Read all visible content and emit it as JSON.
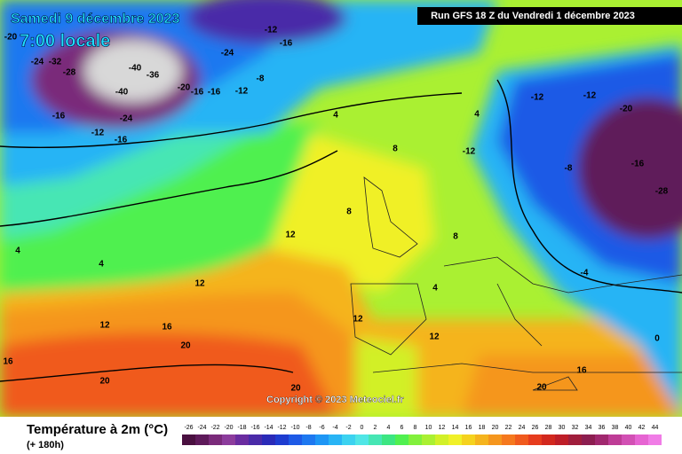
{
  "header": {
    "date": "Samedi 9 décembre 2023",
    "time": "7:00 locale",
    "run": "Run GFS 18 Z du Vendredi 1 décembre 2023"
  },
  "copyright": "Copyright © 2023 Meteociel.fr",
  "footer": {
    "title": "Température à 2m (°C)",
    "subtitle": "(+ 180h)"
  },
  "legend": {
    "values": [
      -26,
      -24,
      -22,
      -20,
      -18,
      -16,
      -14,
      -12,
      -10,
      -8,
      -6,
      -4,
      -2,
      0,
      2,
      4,
      6,
      8,
      10,
      12,
      14,
      16,
      18,
      20,
      22,
      24,
      26,
      28,
      30,
      32,
      34,
      36,
      38,
      40,
      42,
      44
    ],
    "colors": [
      "#4a1040",
      "#5e1a5a",
      "#7a2a7a",
      "#8c3c9c",
      "#6a2ca0",
      "#4a2aa8",
      "#2a2ab8",
      "#1e3cd0",
      "#1e5ae6",
      "#1e78f0",
      "#1e96f5",
      "#28b4f5",
      "#3cd2f0",
      "#50e6e6",
      "#46e6b4",
      "#3ce682",
      "#50f050",
      "#82f03c",
      "#aaf032",
      "#d2f028",
      "#f0f028",
      "#f5d21e",
      "#f5b41e",
      "#f5961e",
      "#f5781e",
      "#f05a1e",
      "#e63c1e",
      "#d2281e",
      "#be1e28",
      "#a01e3c",
      "#8c1e50",
      "#a0286e",
      "#be3c96",
      "#d250b4",
      "#e664d2",
      "#f07ce6"
    ]
  },
  "contour_labels": [
    -20,
    -12,
    -16,
    -24,
    -32,
    -24,
    -28,
    -40,
    -36,
    -20,
    -16,
    -16,
    -12,
    -8,
    -40,
    -24,
    -16,
    -12,
    -16,
    4,
    4,
    8,
    -12,
    8,
    12,
    4,
    4,
    12,
    12,
    16,
    20,
    16,
    20,
    20,
    12,
    12,
    16,
    20,
    -12,
    -12,
    -20,
    -16,
    -28,
    -8,
    0,
    -4,
    4,
    8
  ]
}
